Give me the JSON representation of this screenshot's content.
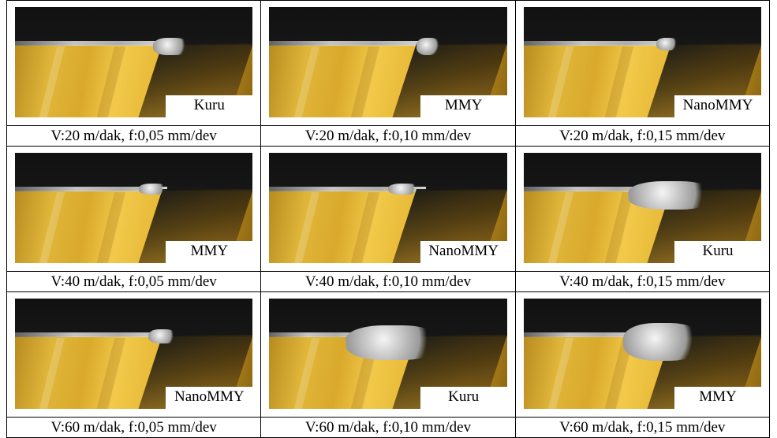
{
  "rows": [
    {
      "cells": [
        {
          "label": "Kuru",
          "caption": "V:20 m/dak, f:0,05 mm/dev"
        },
        {
          "label": "MMY",
          "caption": "V:20 m/dak, f:0,10 mm/dev"
        },
        {
          "label": "NanoMMY",
          "caption": "V:20 m/dak, f:0,15 mm/dev"
        }
      ]
    },
    {
      "cells": [
        {
          "label": "MMY",
          "caption": "V:40 m/dak, f:0,05 mm/dev"
        },
        {
          "label": "NanoMMY",
          "caption": "V:40 m/dak, f:0,10 mm/dev"
        },
        {
          "label": "Kuru",
          "caption": "V:40 m/dak, f:0,15 mm/dev"
        }
      ]
    },
    {
      "cells": [
        {
          "label": "NanoMMY",
          "caption": "V:60 m/dak, f:0,05 mm/dev"
        },
        {
          "label": "Kuru",
          "caption": "V:60 m/dak, f:0,10 mm/dev"
        },
        {
          "label": "MMY",
          "caption": "V:60 m/dak, f:0,15 mm/dev"
        }
      ]
    }
  ]
}
